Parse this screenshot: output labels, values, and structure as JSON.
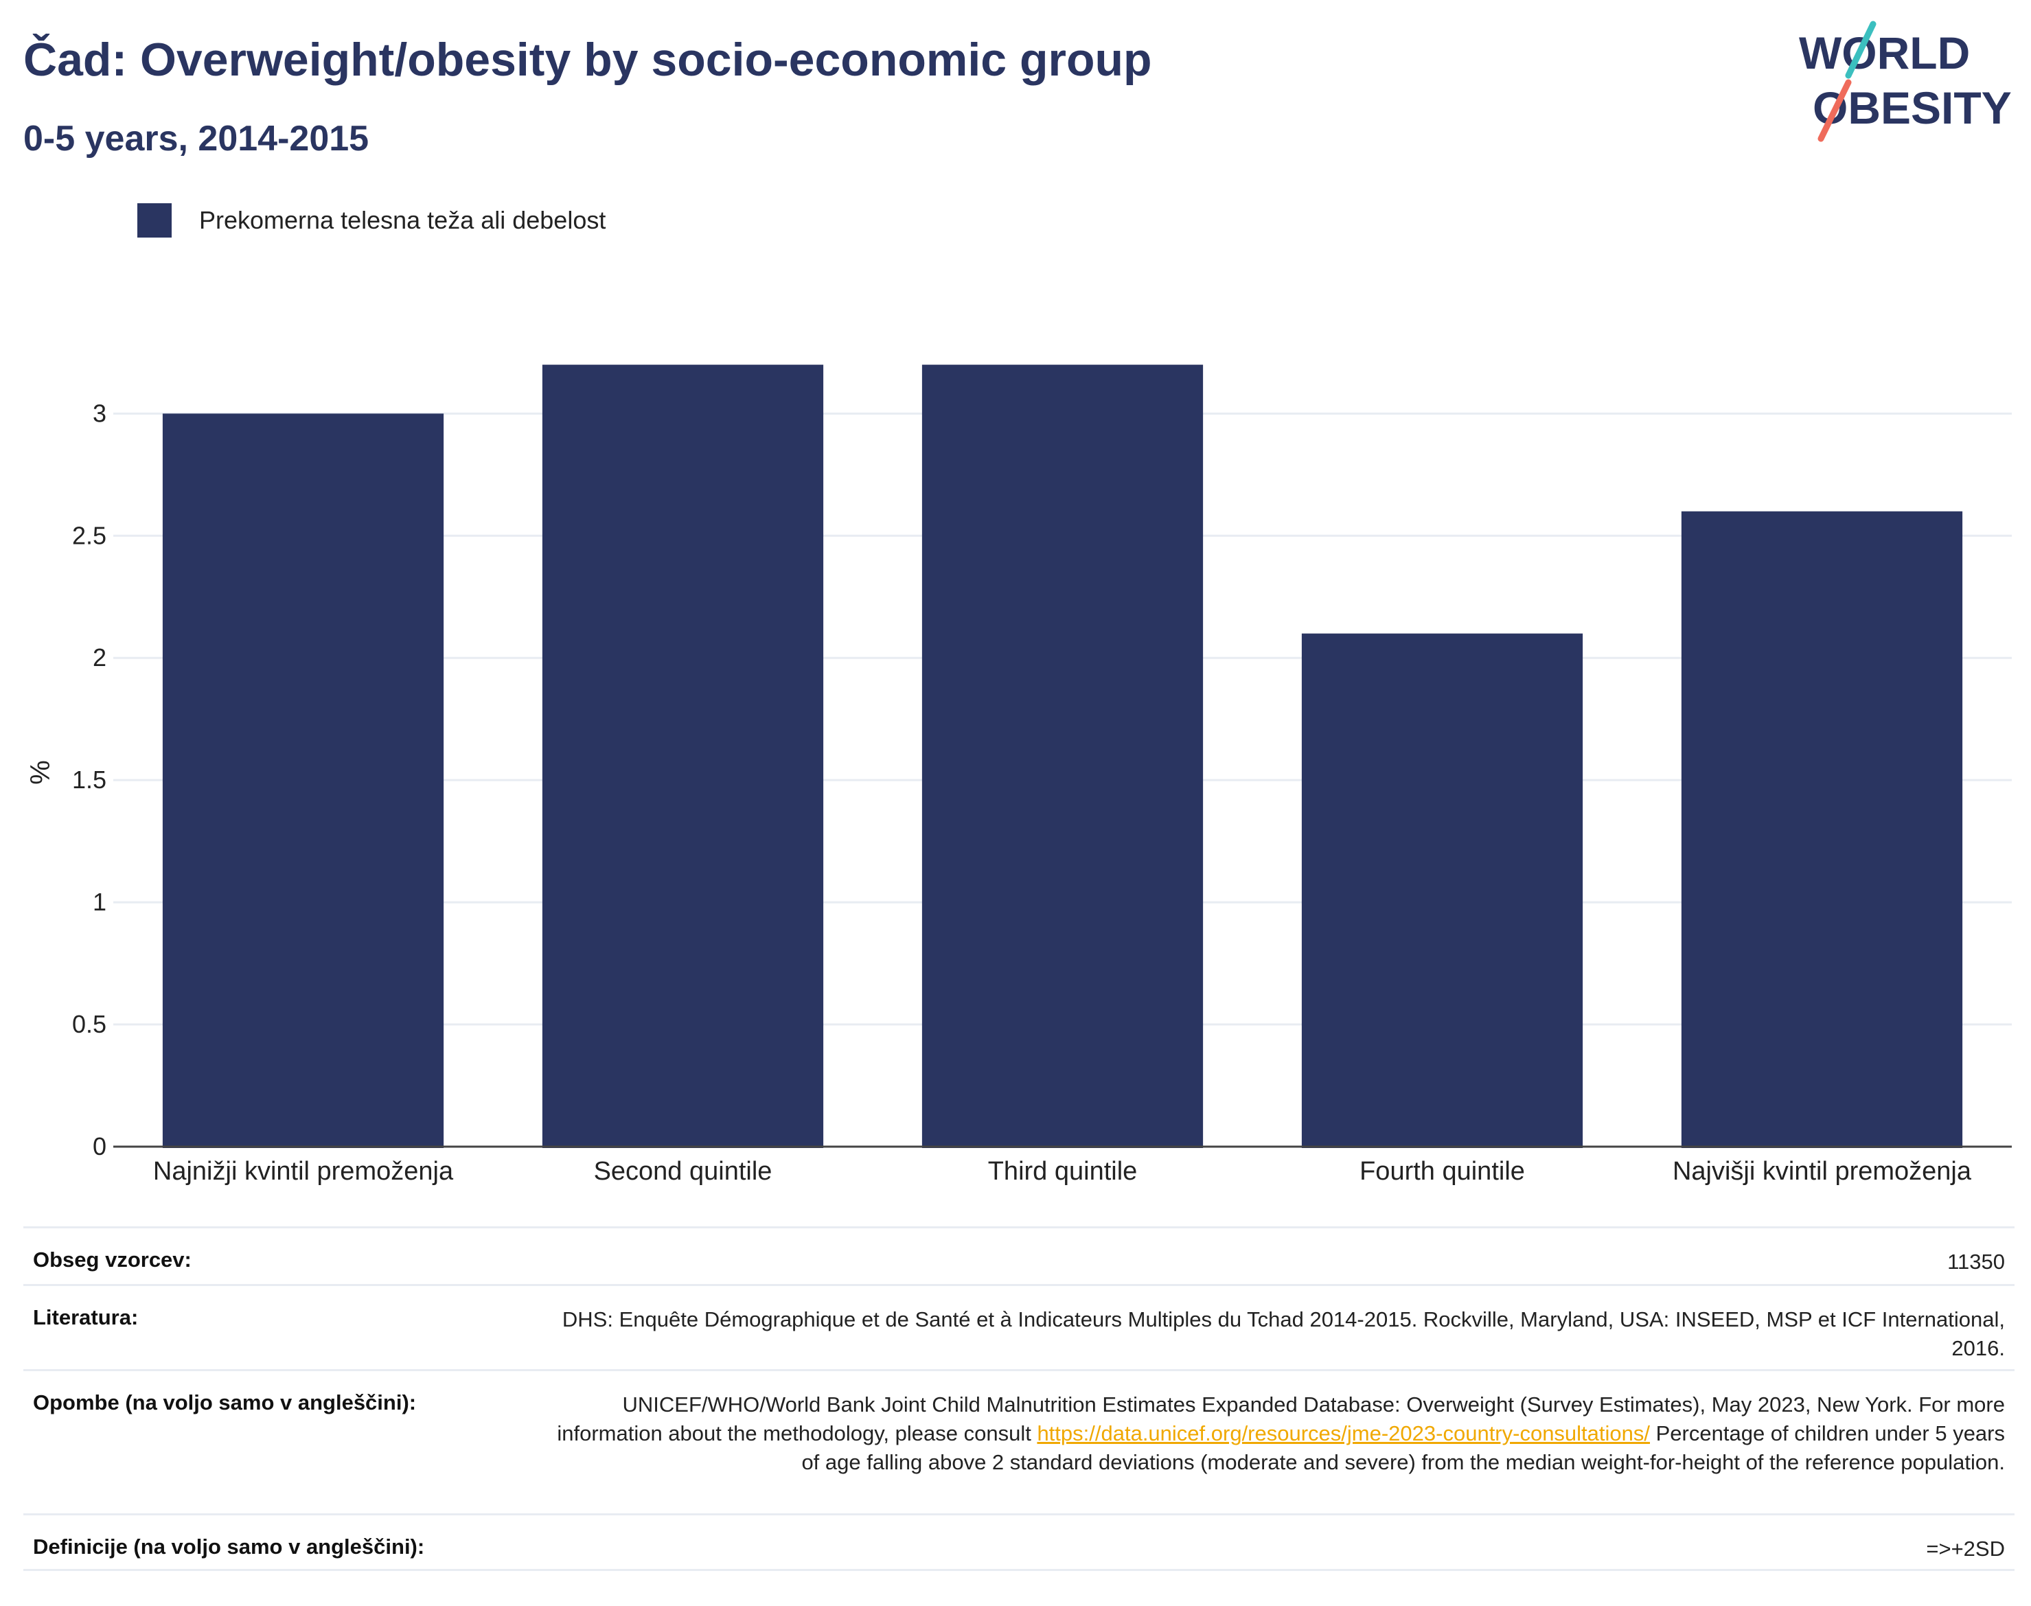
{
  "header": {
    "title": "Čad: Overweight/obesity by socio-economic group",
    "subtitle": "0-5 years, 2014-2015"
  },
  "logo": {
    "line1": "WORLD",
    "line2": "OBESITY",
    "colors": {
      "text": "#2a3561",
      "slash_top": "#3bbfbf",
      "slash_bottom": "#ef6b5b"
    }
  },
  "chart_data": {
    "type": "bar",
    "categories": [
      "Najnižji kvintil premoženja",
      "Second quintile",
      "Third quintile",
      "Fourth quintile",
      "Najvišji kvintil premoženja"
    ],
    "series": [
      {
        "name": "Prekomerna telesna teža ali debelost",
        "values": [
          3.0,
          3.2,
          3.2,
          2.1,
          2.6
        ],
        "color": "#2a3561"
      }
    ],
    "ylabel": "%",
    "xlabel": "",
    "ylim": [
      0,
      3.4
    ],
    "yticks": [
      0,
      0.5,
      1,
      1.5,
      2,
      2.5,
      3
    ],
    "ytick_labels": [
      "0",
      "0.5",
      "1",
      "1.5",
      "2",
      "2.5",
      "3"
    ],
    "grid": true,
    "legend": "top-left"
  },
  "meta": {
    "sample_label": "Obseg vzorcev:",
    "sample_value": "11350",
    "literature_label": "Literatura:",
    "literature_value": "DHS: Enquête Démographique et de Santé et à Indicateurs Multiples du Tchad 2014-2015. Rockville, Maryland, USA: INSEED, MSP et ICF International, 2016.",
    "notes_label": "Opombe (na voljo samo v angleščini):",
    "notes_text1": "UNICEF/WHO/World Bank Joint Child Malnutrition Estimates Expanded Database: Overweight (Survey Estimates), May 2023, New York. For more information about the methodology, please consult ",
    "notes_link": "https://data.unicef.org/resources/jme-2023-country-consultations/",
    "notes_text2": " Percentage of children under 5 years of age falling above 2 standard deviations (moderate and severe) from the median weight-for-height of the reference population.",
    "definitions_label": "Definicije (na voljo samo v angleščini):",
    "definitions_value": "=>+2SD"
  }
}
